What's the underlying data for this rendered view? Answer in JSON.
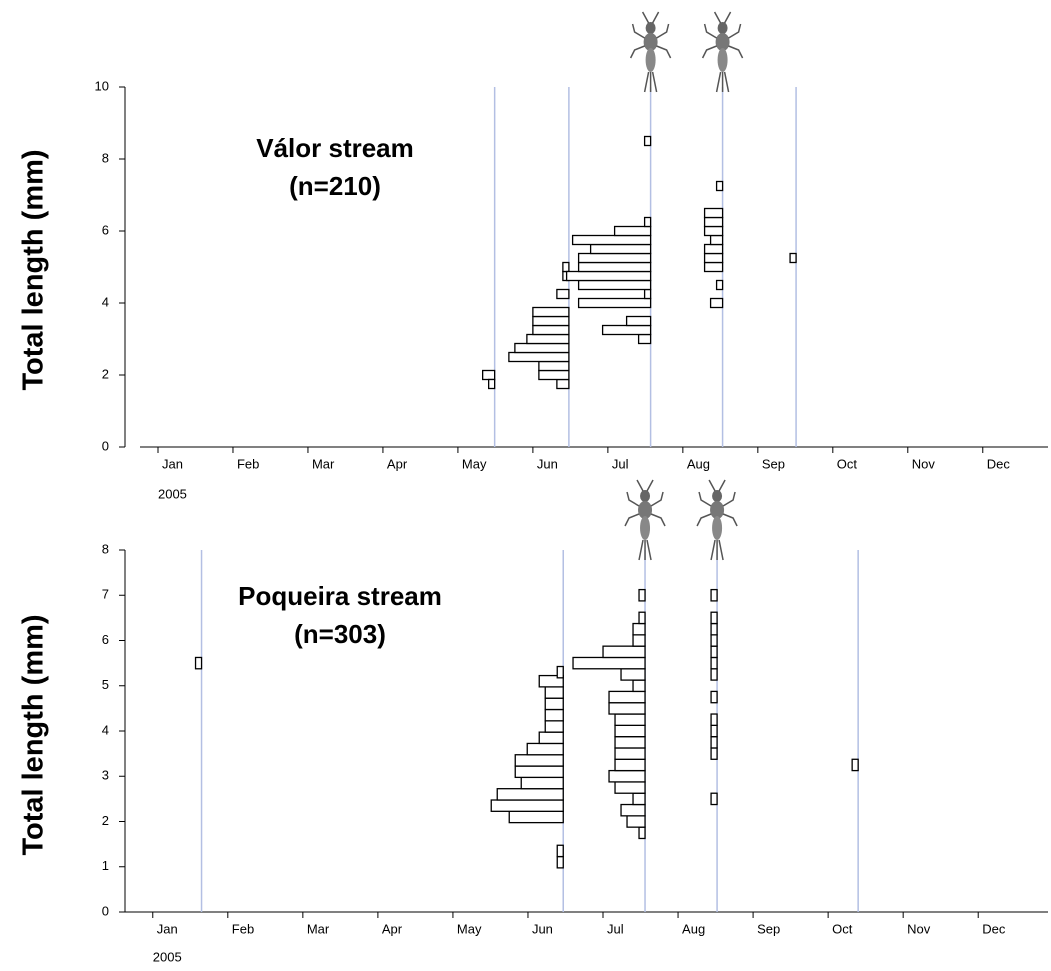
{
  "chart_data": [
    {
      "type": "length-frequency",
      "title": "Válor stream",
      "subtitle": "(n=210)",
      "y_label": "Total length (mm)",
      "x_sublabel": "2005",
      "categories": [
        "Jan",
        "Feb",
        "Mar",
        "Apr",
        "May",
        "Jun",
        "Jul",
        "Aug",
        "Sep",
        "Oct",
        "Nov",
        "Dec"
      ],
      "xlim": [
        -0.24,
        11.87
      ],
      "ylim": [
        0,
        10
      ],
      "yticks": [
        0,
        2,
        4,
        6,
        8,
        10
      ],
      "line_color": "#b3bfe3",
      "bar_color": "#000000",
      "samples": [
        {
          "x": 4.49,
          "lengths": [
            2.0,
            1.75
          ],
          "counts": [
            2,
            1
          ]
        },
        {
          "x": 5.48,
          "lengths": [
            1.75,
            2.0,
            2.25,
            2.5,
            2.75,
            3.0,
            3.25,
            3.5,
            3.75,
            4.25,
            4.75,
            5.0
          ],
          "counts": [
            2,
            5,
            5,
            10,
            9,
            7,
            6,
            6,
            6,
            2,
            1,
            1
          ]
        },
        {
          "x": 6.57,
          "lengths": [
            3.0,
            3.25,
            3.5,
            4.0,
            4.25,
            4.5,
            4.75,
            5.0,
            5.25,
            5.5,
            5.75,
            6.0,
            6.25,
            8.5
          ],
          "counts": [
            2,
            8,
            4,
            12,
            1,
            12,
            14,
            12,
            12,
            10,
            13,
            6,
            1,
            1
          ]
        },
        {
          "x": 7.53,
          "lengths": [
            4.0,
            4.5,
            5.0,
            5.25,
            5.5,
            5.75,
            6.0,
            6.25,
            6.5,
            7.25
          ],
          "counts": [
            2,
            1,
            3,
            3,
            3,
            2,
            3,
            3,
            3,
            1
          ]
        },
        {
          "x": 8.51,
          "lengths": [
            5.25
          ],
          "counts": [
            1
          ]
        }
      ]
    },
    {
      "type": "length-frequency",
      "title": "Poqueira stream",
      "subtitle": "(n=303)",
      "y_label": "Total length (mm)",
      "x_sublabel": "2005",
      "categories": [
        "Jan",
        "Feb",
        "Mar",
        "Apr",
        "May",
        "Jun",
        "Jul",
        "Aug",
        "Sep",
        "Oct",
        "Nov",
        "Dec"
      ],
      "xlim": [
        -0.37,
        11.93
      ],
      "ylim": [
        0,
        8
      ],
      "yticks": [
        0,
        1,
        2,
        3,
        4,
        5,
        6,
        7,
        8
      ],
      "line_color": "#b3bfe3",
      "bar_color": "#000000",
      "samples": [
        {
          "x": 0.65,
          "lengths": [
            5.5
          ],
          "counts": [
            1
          ]
        },
        {
          "x": 5.47,
          "lengths": [
            1.1,
            1.35,
            2.1,
            2.35,
            2.6,
            2.85,
            3.1,
            3.35,
            3.6,
            3.85,
            4.1,
            4.35,
            4.6,
            4.85,
            5.1,
            5.3
          ],
          "counts": [
            1,
            1,
            9,
            12,
            11,
            7,
            8,
            8,
            6,
            4,
            3,
            3,
            3,
            3,
            4,
            1
          ]
        },
        {
          "x": 6.56,
          "lengths": [
            1.75,
            2.0,
            2.25,
            2.5,
            2.75,
            3.0,
            3.25,
            3.5,
            3.75,
            4.0,
            4.25,
            4.5,
            4.75,
            5.0,
            5.25,
            5.5,
            5.75,
            6.0,
            6.25,
            6.5,
            7.0
          ],
          "counts": [
            1,
            3,
            4,
            2,
            5,
            6,
            5,
            5,
            5,
            5,
            5,
            6,
            6,
            2,
            4,
            12,
            7,
            2,
            2,
            1,
            1
          ]
        },
        {
          "x": 7.52,
          "lengths": [
            2.5,
            3.5,
            3.75,
            4.0,
            4.25,
            4.75,
            5.25,
            5.5,
            5.75,
            6.0,
            6.25,
            6.5,
            7.0
          ],
          "counts": [
            1,
            1,
            1,
            1,
            1,
            1,
            1,
            1,
            1,
            1,
            1,
            1,
            1
          ]
        },
        {
          "x": 9.4,
          "lengths": [
            3.25
          ],
          "counts": [
            1
          ]
        }
      ]
    }
  ]
}
